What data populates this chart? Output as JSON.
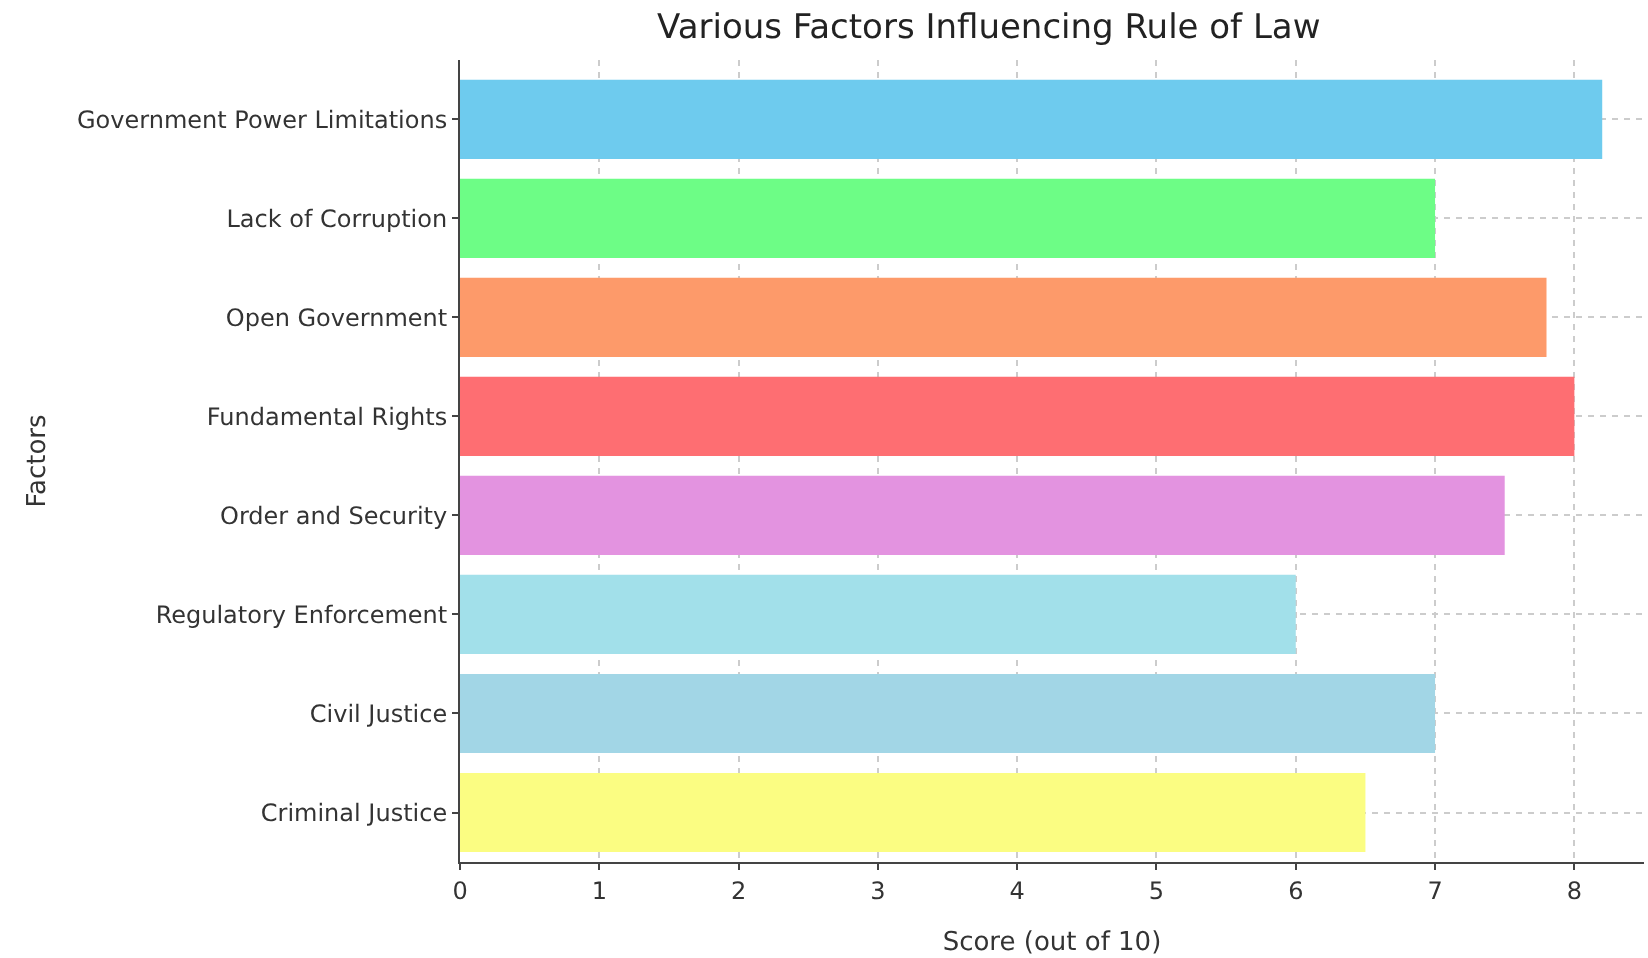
{
  "chart_data": {
    "type": "bar",
    "orientation": "horizontal",
    "title": "Various Factors Influencing Rule of Law",
    "xlabel": "Score (out of 10)",
    "ylabel": "Factors",
    "categories": [
      "Government Power Limitations",
      "Lack of Corruption",
      "Open Government",
      "Fundamental Rights",
      "Order and Security",
      "Regulatory Enforcement",
      "Civil Justice",
      "Criminal Justice"
    ],
    "values": [
      8.2,
      7.0,
      7.8,
      8.0,
      7.5,
      6.0,
      7.0,
      6.5
    ],
    "colors": [
      "#6ecbee",
      "#6dfd86",
      "#fd9a6a",
      "#fe6e72",
      "#e393e0",
      "#a2e0ea",
      "#a2d6e6",
      "#fbfd82"
    ],
    "xlim": [
      0,
      8.5
    ],
    "xticks": [
      0,
      1,
      2,
      3,
      4,
      5,
      6,
      7,
      8
    ],
    "grid": true
  }
}
